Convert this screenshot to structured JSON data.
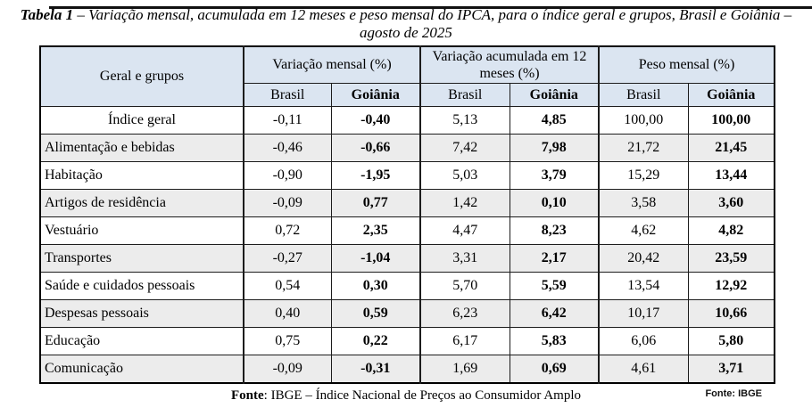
{
  "title": {
    "prefix": "Tabela 1",
    "rest": " – Variação mensal, acumulada em 12 meses e peso mensal do IPCA, para o índice geral e grupos, Brasil e Goiânia – agosto de 2025"
  },
  "table": {
    "row_header": "Geral e grupos",
    "groups": [
      {
        "label": "Variação mensal (%)"
      },
      {
        "label": "Variação acumulada em 12 meses (%)"
      },
      {
        "label": "Peso mensal (%)"
      }
    ],
    "sub_headers": [
      "Brasil",
      "Goiânia",
      "Brasil",
      "Goiânia",
      "Brasil",
      "Goiânia"
    ],
    "rows": [
      {
        "label": "Índice geral",
        "values": [
          "-0,11",
          "-0,40",
          "5,13",
          "4,85",
          "100,00",
          "100,00"
        ]
      },
      {
        "label": "Alimentação e bebidas",
        "values": [
          "-0,46",
          "-0,66",
          "7,42",
          "7,98",
          "21,72",
          "21,45"
        ]
      },
      {
        "label": "Habitação",
        "values": [
          "-0,90",
          "-1,95",
          "5,03",
          "3,79",
          "15,29",
          "13,44"
        ]
      },
      {
        "label": "Artigos de residência",
        "values": [
          "-0,09",
          "0,77",
          "1,42",
          "0,10",
          "3,58",
          "3,60"
        ]
      },
      {
        "label": "Vestuário",
        "values": [
          "0,72",
          "2,35",
          "4,47",
          "8,23",
          "4,62",
          "4,82"
        ]
      },
      {
        "label": "Transportes",
        "values": [
          "-0,27",
          "-1,04",
          "3,31",
          "2,17",
          "20,42",
          "23,59"
        ]
      },
      {
        "label": "Saúde e cuidados pessoais",
        "values": [
          "0,54",
          "0,30",
          "5,70",
          "5,59",
          "13,54",
          "12,92"
        ]
      },
      {
        "label": "Despesas pessoais",
        "values": [
          "0,40",
          "0,59",
          "6,23",
          "6,42",
          "10,17",
          "10,66"
        ]
      },
      {
        "label": "Educação",
        "values": [
          "0,75",
          "0,22",
          "6,17",
          "5,83",
          "6,06",
          "5,80"
        ]
      },
      {
        "label": "Comunicação",
        "values": [
          "-0,09",
          "-0,31",
          "1,69",
          "0,69",
          "4,61",
          "3,71"
        ]
      }
    ]
  },
  "footer": {
    "source_label": "Fonte",
    "source_rest": ": IBGE – Índice Nacional de Preços ao Consumidor Amplo",
    "source_small": "Fonte: IBGE"
  },
  "colors": {
    "header_bg": "#dbe5f1",
    "stripe_bg": "#ececec",
    "border": "#1c1c1c"
  }
}
